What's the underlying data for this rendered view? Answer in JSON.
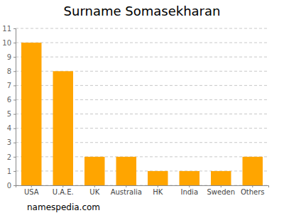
{
  "chart_data": {
    "type": "bar",
    "title": "Surname Somasekharan",
    "categories": [
      "USA",
      "U.A.E.",
      "UK",
      "Australia",
      "HK",
      "India",
      "Sweden",
      "Others"
    ],
    "values": [
      10,
      8,
      2,
      2,
      1,
      1,
      1,
      2
    ],
    "color": "#ffa500",
    "ylim": [
      0,
      11
    ],
    "yticks": [
      0,
      1,
      2,
      3,
      4,
      5,
      6,
      7,
      8,
      9,
      10,
      11
    ],
    "grid": true,
    "source": "namespedia.com"
  }
}
